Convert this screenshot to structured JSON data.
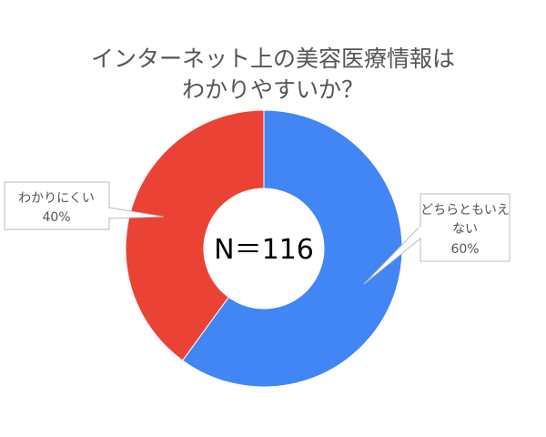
{
  "chart_data": {
    "type": "pie",
    "donut": true,
    "title_lines": [
      "インターネット上の美容医療情報は",
      "わかりやすいか？"
    ],
    "center_label": "N＝116",
    "slices": [
      {
        "label_lines": [
          "どちらともいえ",
          "ない"
        ],
        "percent_label": "60%",
        "value": 60,
        "color": "#4285f4"
      },
      {
        "label_lines": [
          "わかりにくい"
        ],
        "percent_label": "40%",
        "value": 40,
        "color": "#ea4335"
      }
    ],
    "start": "top",
    "direction": "clockwise"
  }
}
